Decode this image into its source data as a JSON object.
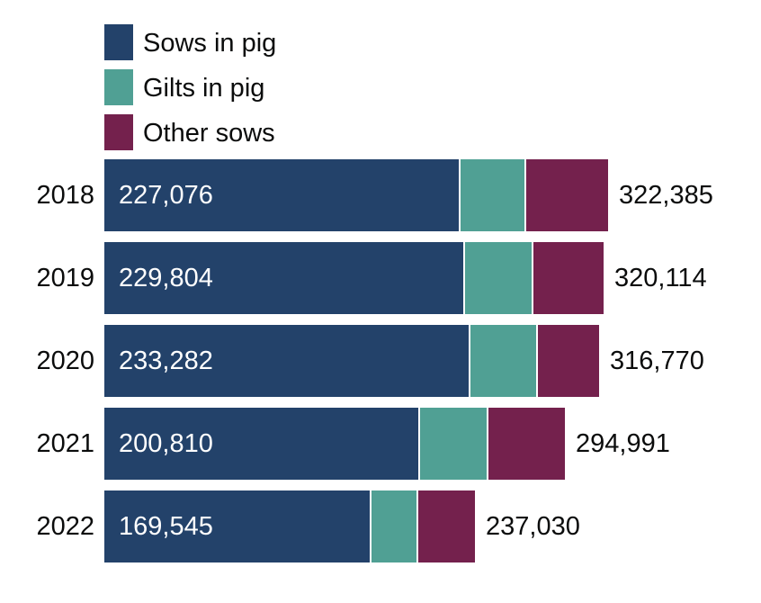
{
  "chart_data": {
    "type": "bar",
    "orientation": "horizontal",
    "stacked": true,
    "title": "",
    "xlabel": "",
    "ylabel": "",
    "categories": [
      "2018",
      "2019",
      "2020",
      "2021",
      "2022"
    ],
    "series": [
      {
        "name": "Sows in pig",
        "color": "#23426a",
        "values": [
          227076,
          229804,
          233282,
          200810,
          169545
        ]
      },
      {
        "name": "Gilts in pig",
        "color": "#50a094",
        "values": [
          42000,
          44000,
          43000,
          44000,
          30000
        ]
      },
      {
        "name": "Other sows",
        "color": "#74214d",
        "values": [
          53309,
          46310,
          40488,
          50181,
          37485
        ]
      }
    ],
    "totals": [
      322385,
      320114,
      316770,
      294991,
      237030
    ],
    "data_labels": {
      "sows_in_pig": [
        "227,076",
        "229,804",
        "233,282",
        "200,810",
        "169,545"
      ],
      "totals": [
        "322,385",
        "320,114",
        "316,770",
        "294,991",
        "237,030"
      ]
    },
    "legend_position": "top-left",
    "grid": false,
    "xlim": [
      0,
      322385
    ]
  },
  "legend": [
    {
      "label": "Sows in pig",
      "color": "#23426a"
    },
    {
      "label": "Gilts in pig",
      "color": "#50a094"
    },
    {
      "label": "Other sows",
      "color": "#74214d"
    }
  ],
  "rows": [
    {
      "year": "2018",
      "sows_label": "227,076",
      "total_label": "322,385"
    },
    {
      "year": "2019",
      "sows_label": "229,804",
      "total_label": "320,114"
    },
    {
      "year": "2020",
      "sows_label": "233,282",
      "total_label": "316,770"
    },
    {
      "year": "2021",
      "sows_label": "200,810",
      "total_label": "294,991"
    },
    {
      "year": "2022",
      "sows_label": "169,545",
      "total_label": "237,030"
    }
  ]
}
